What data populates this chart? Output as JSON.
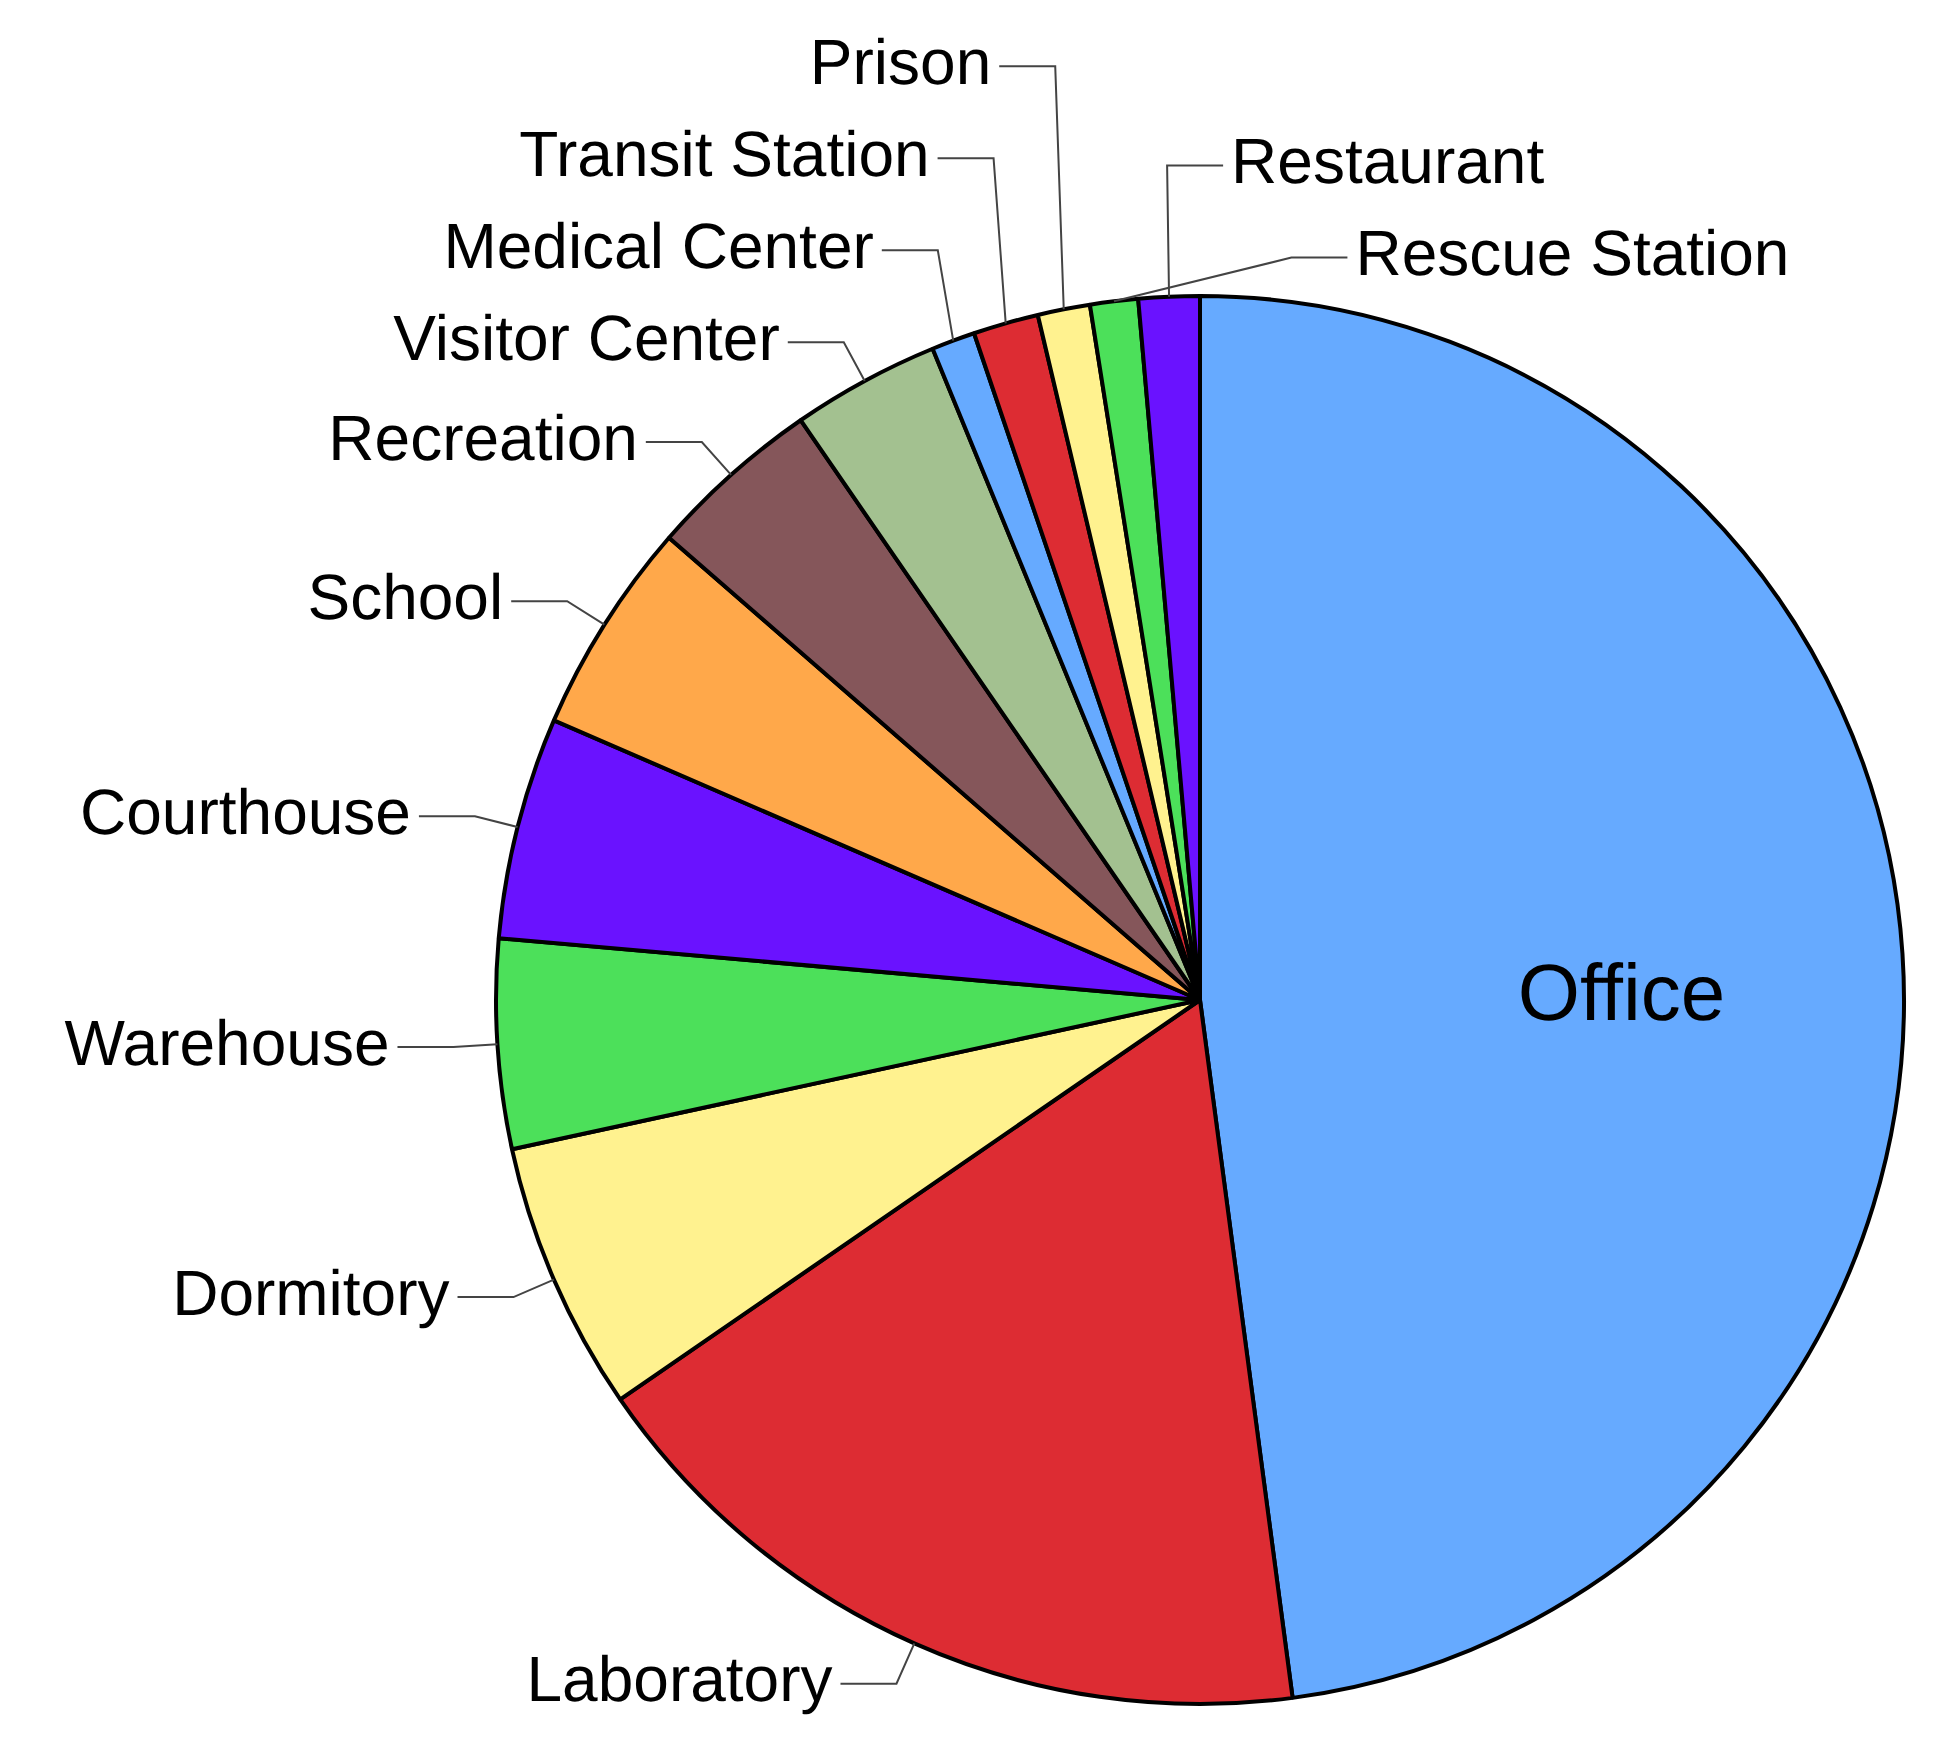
{
  "chart_data": {
    "type": "pie",
    "categories": [
      "Office",
      "Laboratory",
      "Dormitory",
      "Warehouse",
      "Courthouse",
      "School",
      "Recreation",
      "Visitor Center",
      "Medical Center",
      "Transit Station",
      "Prison",
      "Rescue Station",
      "Restaurant"
    ],
    "values": [
      47.9,
      17.5,
      6.2,
      4.8,
      5.1,
      4.9,
      4.0,
      3.4,
      1.0,
      1.5,
      1.2,
      1.1,
      1.4
    ],
    "colors": [
      "#66aaff",
      "#dd2c33",
      "#fff28f",
      "#4ce05a",
      "#6a12ff",
      "#ffa84a",
      "#85565a",
      "#a3c190",
      "#66aaff",
      "#dd2c33",
      "#fff28f",
      "#4ce05a",
      "#6a12ff"
    ],
    "legend": false
  }
}
